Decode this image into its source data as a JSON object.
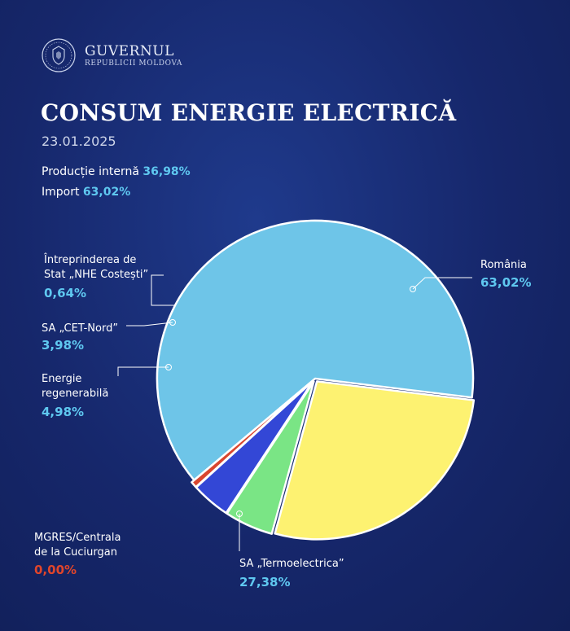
{
  "header": {
    "brand_name": "GUVERNUL",
    "brand_sub": "REPUBLICII MOLDOVA",
    "title": "CONSUM ENERGIE ELECTRICĂ",
    "date": "23.01.2025"
  },
  "summary": [
    {
      "label": "Producție internă",
      "value": "36,98%"
    },
    {
      "label": "Import",
      "value": "63,02%"
    }
  ],
  "chart_data": {
    "type": "pie",
    "unit": "%",
    "slices": [
      {
        "name": "România",
        "value": 63.02,
        "label": "63,02%",
        "color": "#6ec5e8"
      },
      {
        "name": "SA „Termoelectrica”",
        "value": 27.38,
        "label": "27,38%",
        "color": "#fdf271"
      },
      {
        "name": "Energie regenerabilă",
        "value": 4.98,
        "label": "4,98%",
        "color": "#7ae585"
      },
      {
        "name": "SA „CET-Nord”",
        "value": 3.98,
        "label": "3,98%",
        "color": "#3347d6"
      },
      {
        "name": "Întreprinderea de Stat „NHE Costești”",
        "value": 0.64,
        "label": "0,64%",
        "color": "#d9462f"
      },
      {
        "name": "MGRES/Centrala de la Cuciurgan",
        "value": 0.0,
        "label": "0,00%",
        "color": "#d9462f"
      }
    ]
  },
  "labels": {
    "romania": {
      "line1": "România",
      "pct": "63,02%"
    },
    "termo": {
      "line1": "SA „Termoelectrica”",
      "pct": "27,38%"
    },
    "regen": {
      "line1": "Energie",
      "line2": "regenerabilă",
      "pct": "4,98%"
    },
    "cet": {
      "line1": "SA „CET-Nord”",
      "pct": "3,98%"
    },
    "nhe": {
      "line1": "Întreprinderea de",
      "line2": "Stat „NHE Costești”",
      "pct": "0,64%"
    },
    "mgres": {
      "line1": "MGRES/Centrala",
      "line2": "de la Cuciurgan",
      "pct": "0,00%"
    }
  },
  "colors": {
    "background": "#16276b",
    "accent_value": "#5fc8f0",
    "zero_value": "#e0452b"
  }
}
